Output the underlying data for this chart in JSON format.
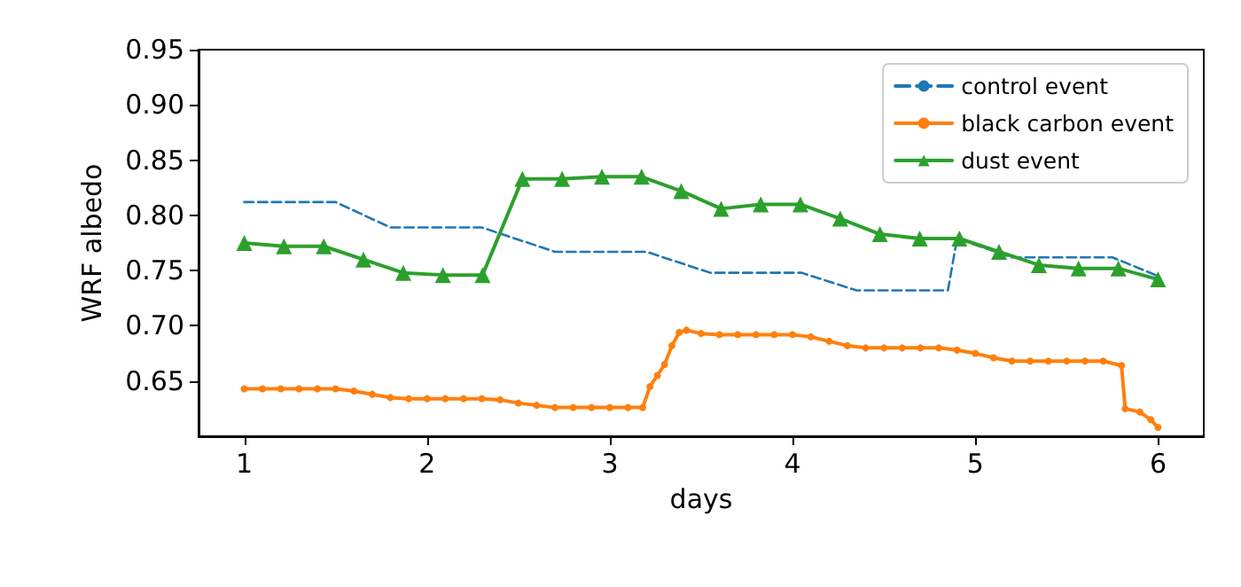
{
  "chart_data": {
    "type": "line",
    "xlabel": "days",
    "ylabel": "WRF albedo",
    "xlim": [
      0.75,
      6.25
    ],
    "xticks": [
      1,
      2,
      3,
      4,
      5,
      6
    ],
    "ylim": [
      0.6,
      0.95
    ],
    "yticks": [
      0.65,
      {
        "value": 0.7,
        "label": "0.70"
      },
      0.75,
      {
        "value": 0.8,
        "label": "0.80"
      },
      0.85,
      {
        "value": 0.9,
        "label": "0.90"
      },
      0.95
    ],
    "grid": false,
    "legend": "top right",
    "series": [
      {
        "name": "control event",
        "color": "#1f77b4",
        "line_style": "dashed",
        "marker": "none",
        "x": [
          1,
          1.5,
          1.8,
          2.3,
          2.7,
          3.2,
          3.55,
          4.05,
          4.35,
          4.85,
          4.9,
          5.2,
          5.75,
          6
        ],
        "values": [
          0.812,
          0.812,
          0.789,
          0.789,
          0.767,
          0.767,
          0.748,
          0.748,
          0.732,
          0.732,
          0.779,
          0.762,
          0.762,
          0.745
        ]
      },
      {
        "name": "black carbon event",
        "color": "#ff7f0e",
        "line_style": "solid",
        "marker": "circle",
        "x": [
          1,
          1.1,
          1.2,
          1.3,
          1.4,
          1.5,
          1.6,
          1.7,
          1.8,
          1.9,
          2.0,
          2.1,
          2.2,
          2.3,
          2.4,
          2.5,
          2.6,
          2.7,
          2.8,
          2.9,
          3.0,
          3.1,
          3.18,
          3.22,
          3.26,
          3.3,
          3.34,
          3.38,
          3.42,
          3.5,
          3.6,
          3.7,
          3.8,
          3.9,
          4.0,
          4.1,
          4.2,
          4.3,
          4.4,
          4.5,
          4.6,
          4.7,
          4.8,
          4.9,
          5.0,
          5.1,
          5.2,
          5.3,
          5.4,
          5.5,
          5.6,
          5.7,
          5.8,
          5.82,
          5.9,
          5.96,
          6.0
        ],
        "values": [
          0.643,
          0.643,
          0.643,
          0.643,
          0.643,
          0.643,
          0.641,
          0.638,
          0.635,
          0.634,
          0.634,
          0.634,
          0.634,
          0.634,
          0.633,
          0.63,
          0.628,
          0.626,
          0.626,
          0.626,
          0.626,
          0.626,
          0.626,
          0.645,
          0.655,
          0.665,
          0.682,
          0.694,
          0.696,
          0.693,
          0.692,
          0.692,
          0.692,
          0.692,
          0.692,
          0.69,
          0.686,
          0.682,
          0.68,
          0.68,
          0.68,
          0.68,
          0.68,
          0.678,
          0.675,
          0.671,
          0.668,
          0.668,
          0.668,
          0.668,
          0.668,
          0.668,
          0.664,
          0.625,
          0.622,
          0.615,
          0.608
        ]
      },
      {
        "name": "dust event",
        "color": "#2ca02c",
        "line_style": "solid",
        "marker": "triangle",
        "x": [
          1,
          1.217,
          1.435,
          1.652,
          1.87,
          2.087,
          2.304,
          2.522,
          2.739,
          2.957,
          3.174,
          3.391,
          3.609,
          3.826,
          4.043,
          4.261,
          4.478,
          4.696,
          4.913,
          5.13,
          5.348,
          5.565,
          5.783,
          6
        ],
        "values": [
          0.775,
          0.772,
          0.772,
          0.76,
          0.748,
          0.746,
          0.746,
          0.833,
          0.833,
          0.835,
          0.835,
          0.822,
          0.806,
          0.81,
          0.81,
          0.797,
          0.783,
          0.779,
          0.779,
          0.767,
          0.755,
          0.752,
          0.752,
          0.742
        ]
      }
    ]
  }
}
